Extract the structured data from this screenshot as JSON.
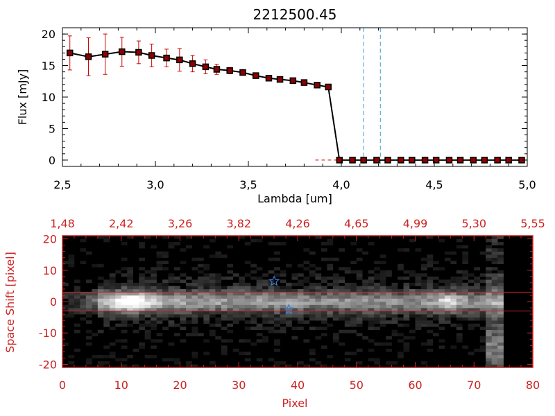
{
  "chart_data": [
    {
      "type": "line",
      "title": "2212500.45",
      "xlabel": "Lambda [um]",
      "ylabel": "Flux [mJy]",
      "xlim": [
        2.5,
        5.0
      ],
      "ylim": [
        -1,
        21
      ],
      "x_ticks": [
        "2.5",
        "3.0",
        "3.5",
        "4.0",
        "4.5",
        "5.0"
      ],
      "y_ticks": [
        "0",
        "5",
        "10",
        "15",
        "20"
      ],
      "series": [
        {
          "color": "#000000",
          "marker": "square",
          "marker_color": "#8b0000",
          "errorbar_color": "#cc0000",
          "x": [
            2.54,
            2.64,
            2.73,
            2.82,
            2.91,
            2.98,
            3.06,
            3.13,
            3.2,
            3.27,
            3.33,
            3.4,
            3.47,
            3.54,
            3.61,
            3.67,
            3.74,
            3.8,
            3.87,
            3.93,
            3.99,
            4.06,
            4.12,
            4.19,
            4.25,
            4.32,
            4.38,
            4.45,
            4.51,
            4.58,
            4.64,
            4.71,
            4.77,
            4.84,
            4.9,
            4.97
          ],
          "y": [
            17.0,
            16.4,
            16.8,
            17.2,
            17.1,
            16.6,
            16.2,
            15.9,
            15.3,
            14.8,
            14.4,
            14.2,
            13.9,
            13.4,
            13.0,
            12.8,
            12.6,
            12.3,
            11.9,
            11.6,
            0,
            0,
            0,
            0,
            0,
            0,
            0,
            0,
            0,
            0,
            0,
            0,
            0,
            0,
            0,
            0
          ],
          "yerr": [
            2.7,
            3.0,
            3.2,
            2.3,
            1.8,
            1.8,
            1.4,
            1.8,
            1.3,
            1.1,
            0.8,
            0.5,
            0.3,
            0.3,
            0.3,
            0.2,
            0.2,
            0.2,
            0.2,
            0.2,
            0,
            0,
            0,
            0,
            0,
            0,
            0,
            0,
            0,
            0,
            0,
            0,
            0,
            0,
            0,
            0
          ]
        }
      ],
      "vlines": [
        {
          "x": 4.12,
          "style": "dashed",
          "color": "#3fa0d0"
        },
        {
          "x": 4.21,
          "style": "dashed",
          "color": "#3fa0d0"
        }
      ],
      "hline": {
        "y": 0,
        "style": "dashed",
        "color": "#cc0000"
      }
    },
    {
      "type": "heatmap",
      "xlabel": "Pixel",
      "ylabel": "Space Shift [pixel]",
      "xlim": [
        0,
        80
      ],
      "ylim": [
        -21,
        21
      ],
      "x_ticks": [
        "0",
        "10",
        "20",
        "30",
        "40",
        "50",
        "60",
        "70",
        "80"
      ],
      "y_ticks": [
        "-20",
        "-10",
        "0",
        "10",
        "20"
      ],
      "top_ticks": [
        "1.48",
        "2.42",
        "3.26",
        "3.82",
        "4.26",
        "4.65",
        "4.99",
        "5.30",
        "5.55"
      ],
      "colormap": "grayscale",
      "axis_color": "#cc2222",
      "trace_center": 0,
      "aperture_lines": [
        3,
        -3
      ],
      "bright_spots": [
        {
          "x": 11,
          "y": 0,
          "intensity": 1.0
        },
        {
          "x": 65,
          "y": 1,
          "intensity": 0.6
        },
        {
          "x": 74,
          "y": -15,
          "intensity": 0.7
        }
      ],
      "star_markers": [
        {
          "x": 36,
          "y": 6.5
        },
        {
          "x": 38.5,
          "y": -2.5
        }
      ],
      "marker_color": "#3a7fd0"
    }
  ]
}
